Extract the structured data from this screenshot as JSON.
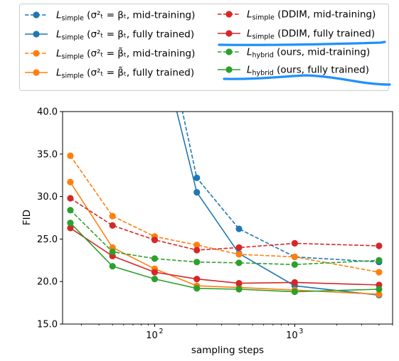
{
  "chart_data": {
    "type": "line",
    "title": "",
    "xlabel": "sampling steps",
    "ylabel": "FID",
    "xscale": "log",
    "xlim": [
      22,
      5000
    ],
    "ylim": [
      15.0,
      40.0
    ],
    "x_ticks": [
      {
        "value": 100,
        "base": "10",
        "exp": "2"
      },
      {
        "value": 1000,
        "base": "10",
        "exp": "3"
      }
    ],
    "y_ticks": [
      "15.0",
      "20.0",
      "25.0",
      "30.0",
      "35.0",
      "40.0"
    ],
    "grid": false,
    "legend_position": "top, above plot",
    "x": [
      25,
      50,
      100,
      200,
      400,
      1000,
      4000
    ],
    "series": [
      {
        "name_main": "L",
        "name_sub": "simple",
        "name_rest": "(σ²ₜ = βₜ, mid-training)",
        "color": "#1f77b4",
        "dashed": true,
        "values": [
          null,
          null,
          null,
          32.2,
          26.2,
          22.9,
          22.3
        ]
      },
      {
        "name_main": "L",
        "name_sub": "simple",
        "name_rest": "(σ²ₜ = βₜ, fully trained)",
        "color": "#1f77b4",
        "dashed": false,
        "values": [
          null,
          null,
          null,
          30.5,
          23.3,
          19.5,
          18.4
        ]
      },
      {
        "name_main": "L",
        "name_sub": "simple",
        "name_rest": "(σ²ₜ = β̃ₜ, mid-training)",
        "color": "#ff7f0e",
        "dashed": true,
        "values": [
          34.8,
          27.7,
          25.3,
          24.3,
          23.2,
          22.9,
          21.1
        ]
      },
      {
        "name_main": "L",
        "name_sub": "simple",
        "name_rest": "(σ²ₜ = β̃ₜ, fully trained)",
        "color": "#ff7f0e",
        "dashed": false,
        "values": [
          31.7,
          24.0,
          21.5,
          19.5,
          19.3,
          19.0,
          18.5
        ]
      },
      {
        "name_main": "L",
        "name_sub": "simple",
        "name_rest": "(DDIM, mid-training)",
        "color": "#d62728",
        "dashed": true,
        "values": [
          29.8,
          26.6,
          24.9,
          23.7,
          24.0,
          24.5,
          24.2
        ]
      },
      {
        "name_main": "L",
        "name_sub": "simple",
        "name_rest": "(DDIM, fully trained)",
        "color": "#d62728",
        "dashed": false,
        "values": [
          26.3,
          23.0,
          21.1,
          20.3,
          19.8,
          19.9,
          19.6
        ]
      },
      {
        "name_main": "L",
        "name_sub": "hybrid",
        "name_rest": "(ours, mid-training)",
        "color": "#2ca02c",
        "dashed": true,
        "values": [
          28.4,
          23.5,
          22.7,
          22.3,
          22.2,
          22.0,
          22.5
        ]
      },
      {
        "name_main": "L",
        "name_sub": "hybrid",
        "name_rest": "(ours, fully trained)",
        "color": "#2ca02c",
        "dashed": false,
        "values": [
          26.9,
          21.8,
          20.3,
          19.2,
          19.1,
          18.8,
          19.1
        ]
      }
    ],
    "blue_series_entry_points": {
      "x_at_top": 150,
      "note": "blue curves enter from above y=40 between x=100 and x=200"
    },
    "annotation_color": "#1e90ff"
  }
}
